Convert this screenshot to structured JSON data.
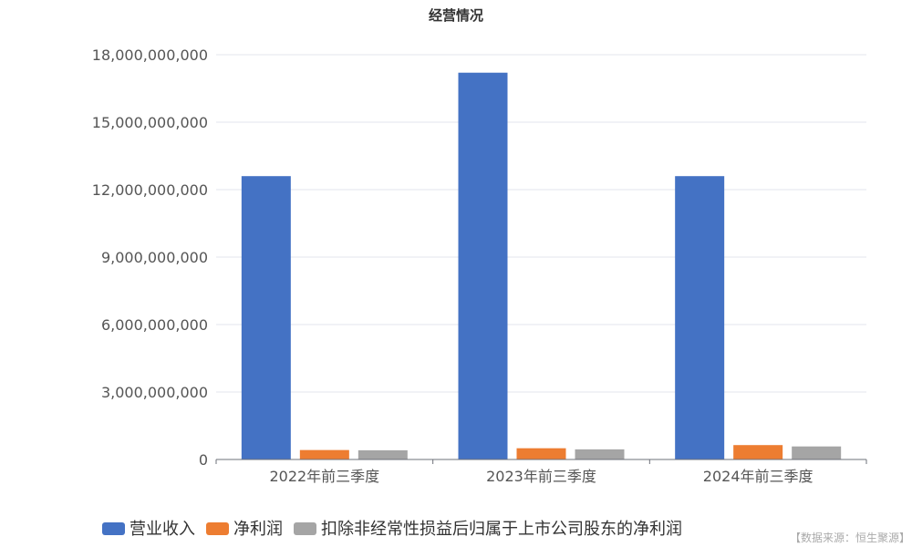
{
  "chart_data": {
    "type": "bar",
    "title": "经营情况",
    "categories": [
      "2022年前三季度",
      "2023年前三季度",
      "2024年前三季度"
    ],
    "series": [
      {
        "name": "营业收入",
        "color": "#4472C4",
        "values": [
          12600000000,
          17200000000,
          12600000000
        ]
      },
      {
        "name": "净利润",
        "color": "#ED7D31",
        "values": [
          420000000,
          500000000,
          640000000
        ]
      },
      {
        "name": "扣除非经常性损益后归属于上市公司股东的净利润",
        "color": "#A5A5A5",
        "values": [
          410000000,
          450000000,
          580000000
        ]
      }
    ],
    "yticks": [
      "0",
      "3,000,000,000",
      "6,000,000,000",
      "9,000,000,000",
      "12,000,000,000",
      "15,000,000,000",
      "18,000,000,000"
    ],
    "ylim": [
      0,
      18000000000
    ],
    "grid": true,
    "legend_position": "bottom"
  },
  "source_note": "【数据来源：恒生聚源】"
}
